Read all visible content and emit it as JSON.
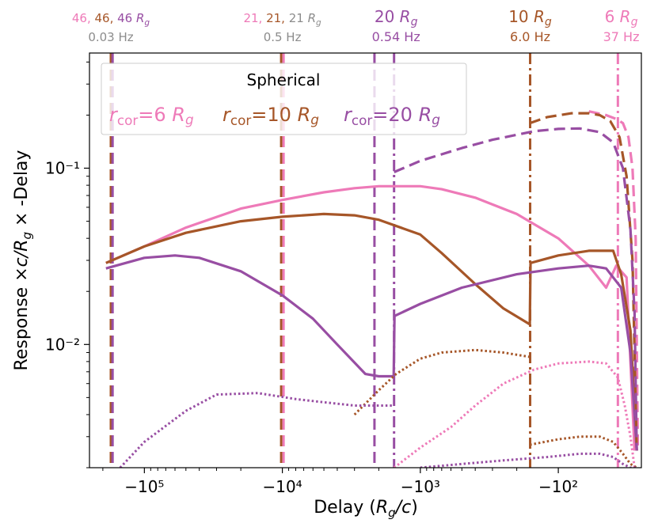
{
  "colors": {
    "pink": "#ee7ab8",
    "brown": "#a65628",
    "purple": "#984ea3",
    "gray": "#8c8c8c",
    "black": "#000000"
  },
  "chart_data": {
    "type": "line",
    "xlabel": "Delay (R_g/c)",
    "ylabel": "Response ×c/R_g × -Delay",
    "xscale": "symlog (negative delays)",
    "yscale": "log",
    "xlim": [
      -250000,
      -25
    ],
    "ylim": [
      0.002,
      0.45
    ],
    "x_ticks": [
      {
        "value": -100000,
        "label": "−10⁵"
      },
      {
        "value": -10000,
        "label": "−10⁴"
      },
      {
        "value": -1000,
        "label": "−10³"
      },
      {
        "value": -100,
        "label": "−10²"
      }
    ],
    "y_ticks": [
      {
        "value": 0.1,
        "label": "10⁻¹"
      },
      {
        "value": 0.01,
        "label": "10⁻²"
      }
    ],
    "legend": {
      "position": "upper-left",
      "title": "Spherical",
      "entries": [
        {
          "series": "r_cor=6 R_g",
          "color": "pink"
        },
        {
          "series": "r_cor=10 R_g",
          "color": "brown"
        },
        {
          "series": "r_cor=20 R_g",
          "color": "purple"
        }
      ]
    },
    "top_annotations": [
      {
        "x": -175000,
        "line1": [
          {
            "text": "46, ",
            "color": "pink"
          },
          {
            "text": "46, ",
            "color": "brown"
          },
          {
            "text": "46 R_g",
            "color": "purple"
          }
        ],
        "line2": {
          "text": "0.03 Hz",
          "color": "gray"
        }
      },
      {
        "x": -10000,
        "line1": [
          {
            "text": "21, ",
            "color": "pink"
          },
          {
            "text": "21, ",
            "color": "brown"
          },
          {
            "text": "21 R_g",
            "color": "gray"
          }
        ],
        "line2": {
          "text": "0.5 Hz",
          "color": "gray"
        }
      },
      {
        "x": -1500,
        "line1": [
          {
            "text": "20 R_g",
            "color": "purple"
          }
        ],
        "line2": {
          "text": "0.54 Hz",
          "color": "purple"
        }
      },
      {
        "x": -160,
        "line1": [
          {
            "text": "10 R_g",
            "color": "brown"
          }
        ],
        "line2": {
          "text": "6.0 Hz",
          "color": "brown"
        }
      },
      {
        "x": -35,
        "line1": [
          {
            "text": "6 R_g",
            "color": "pink"
          }
        ],
        "line2": {
          "text": "37 Hz",
          "color": "pink"
        }
      }
    ],
    "vlines": [
      {
        "x": -175000,
        "color": "brown",
        "dash": "dashed"
      },
      {
        "x": -170000,
        "color": "purple",
        "dash": "dashed"
      },
      {
        "x": -10200,
        "color": "brown",
        "dash": "dashed"
      },
      {
        "x": -9800,
        "color": "pink",
        "dash": "dashed"
      },
      {
        "x": -2150,
        "color": "purple",
        "dash": "dashed"
      },
      {
        "x": -1550,
        "color": "purple",
        "dash": "dashdot"
      },
      {
        "x": -160,
        "color": "brown",
        "dash": "dashdot"
      },
      {
        "x": -37,
        "color": "pink",
        "dash": "dashdot"
      }
    ],
    "series": [
      {
        "name": "r_cor=6 R_g total",
        "color": "pink",
        "style": "solid",
        "x": [
          -190000,
          -100000,
          -50000,
          -20000,
          -10000,
          -5000,
          -3000,
          -2000,
          -1000,
          -700,
          -400,
          -200,
          -100,
          -60,
          -45,
          -38,
          -32,
          -28
        ],
        "y": [
          0.029,
          0.036,
          0.046,
          0.059,
          0.066,
          0.073,
          0.077,
          0.079,
          0.079,
          0.076,
          0.068,
          0.055,
          0.04,
          0.028,
          0.021,
          0.028,
          0.024,
          0.0025
        ]
      },
      {
        "name": "r_cor=10 R_g total",
        "color": "brown",
        "style": "solid",
        "x": [
          -190000,
          -100000,
          -50000,
          -20000,
          -10000,
          -5000,
          -3000,
          -2000,
          -1000,
          -700,
          -400,
          -250,
          -161,
          -159,
          -100,
          -60,
          -40,
          -35,
          -30,
          -27
        ],
        "y": [
          0.029,
          0.036,
          0.043,
          0.05,
          0.053,
          0.055,
          0.054,
          0.051,
          0.042,
          0.033,
          0.022,
          0.016,
          0.013,
          0.029,
          0.032,
          0.034,
          0.034,
          0.025,
          0.012,
          0.0025
        ]
      },
      {
        "name": "r_cor=20 R_g total",
        "color": "purple",
        "style": "solid",
        "x": [
          -190000,
          -100000,
          -60000,
          -40000,
          -20000,
          -10000,
          -6000,
          -4000,
          -2500,
          -2000,
          -1560,
          -1540,
          -1000,
          -500,
          -200,
          -100,
          -60,
          -45,
          -35,
          -30,
          -27
        ],
        "y": [
          0.027,
          0.031,
          0.032,
          0.031,
          0.026,
          0.019,
          0.014,
          0.01,
          0.0068,
          0.0066,
          0.0066,
          0.0145,
          0.017,
          0.021,
          0.025,
          0.027,
          0.028,
          0.027,
          0.021,
          0.009,
          0.0025
        ]
      },
      {
        "name": "r_cor=6 R_g upper",
        "color": "pink",
        "style": "dashed",
        "x": [
          -60,
          -45,
          -38,
          -34,
          -31,
          -29,
          -27.5,
          -26.5
        ],
        "y": [
          0.21,
          0.2,
          0.19,
          0.18,
          0.15,
          0.1,
          0.04,
          0.0025
        ]
      },
      {
        "name": "r_cor=10 R_g upper",
        "color": "brown",
        "style": "dashed",
        "x": [
          -161,
          -120,
          -80,
          -60,
          -50,
          -42,
          -36,
          -32,
          -29,
          -27
        ],
        "y": [
          0.18,
          0.195,
          0.205,
          0.205,
          0.2,
          0.185,
          0.15,
          0.09,
          0.03,
          0.0025
        ]
      },
      {
        "name": "r_cor=20 R_g upper",
        "color": "purple",
        "style": "dashed",
        "x": [
          -1550,
          -1000,
          -500,
          -300,
          -150,
          -100,
          -70,
          -50,
          -40,
          -34,
          -30,
          -28,
          -27
        ],
        "y": [
          0.095,
          0.11,
          0.13,
          0.145,
          0.162,
          0.167,
          0.168,
          0.16,
          0.14,
          0.1,
          0.045,
          0.015,
          0.0025
        ]
      },
      {
        "name": "r_cor=6 R_g lower",
        "color": "pink",
        "style": "dotted",
        "x": [
          -1550,
          -1000,
          -600,
          -400,
          -250,
          -150,
          -100,
          -60,
          -45,
          -37,
          -33,
          -30,
          -28
        ],
        "y": [
          0.002,
          0.0026,
          0.0034,
          0.0045,
          0.006,
          0.0072,
          0.0078,
          0.008,
          0.0078,
          0.0065,
          0.0045,
          0.003,
          0.002
        ]
      },
      {
        "name": "r_cor=10 R_g lower",
        "color": "brown",
        "style": "dotted",
        "x": [
          -3000,
          -2000,
          -1500,
          -1000,
          -700,
          -400,
          -250,
          -161
        ],
        "y": [
          0.004,
          0.0055,
          0.0068,
          0.0083,
          0.009,
          0.0093,
          0.009,
          0.0085
        ]
      },
      {
        "name": "r_cor=10 R_g lower (inner)",
        "color": "brown",
        "style": "dotted",
        "x": [
          -161,
          -100,
          -70,
          -50,
          -40,
          -34,
          -30,
          -27
        ],
        "y": [
          0.0027,
          0.0029,
          0.003,
          0.003,
          0.0028,
          0.0024,
          0.0021,
          0.002
        ]
      },
      {
        "name": "r_cor=20 R_g lower",
        "color": "purple",
        "style": "dotted",
        "x": [
          -150000,
          -100000,
          -50000,
          -30000,
          -15000,
          -8000,
          -5000,
          -3000,
          -2000,
          -1550
        ],
        "y": [
          0.002,
          0.0028,
          0.0042,
          0.0052,
          0.0053,
          0.0049,
          0.0047,
          0.0045,
          0.0045,
          0.0045
        ]
      },
      {
        "name": "r_cor=20 R_g lower (inner)",
        "color": "purple",
        "style": "dotted",
        "x": [
          -1000,
          -500,
          -250,
          -120,
          -70,
          -50,
          -40,
          -34,
          -30,
          -27
        ],
        "y": [
          0.002,
          0.0021,
          0.0022,
          0.0023,
          0.0024,
          0.0024,
          0.0023,
          0.0021,
          0.002,
          0.002
        ]
      }
    ]
  }
}
